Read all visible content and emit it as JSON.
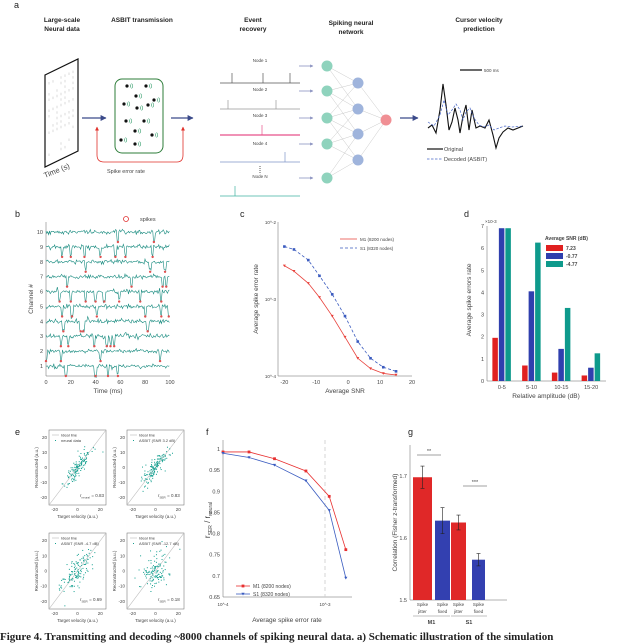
{
  "panel_labels": {
    "a": "a",
    "b": "b",
    "c": "c",
    "d": "d",
    "e": "e",
    "f": "f",
    "g": "g"
  },
  "panel_a": {
    "titles": {
      "data1": "Large-scale",
      "data2": "Neural data",
      "asbit": "ASBIT transmission",
      "event1": "Event",
      "event2": "recovery",
      "snn1": "Spiking neural",
      "snn2": "network",
      "cursor1": "Cursor velocity",
      "cursor2": "prediction"
    },
    "time_label": "Time (s)",
    "spike_error_label": "Spike error rate",
    "nodes": [
      "Node 1",
      "Node 2",
      "Node 3",
      "Node 4",
      "Node N"
    ],
    "node_colors": [
      "#555555",
      "#999999",
      "#e8508a",
      "#7f95c8",
      "#3fb3a0"
    ],
    "scale_bar": "500 ms",
    "legend_original": "Original",
    "legend_decoded": "Decoded (ASBIT)",
    "colors": {
      "input_node": "#8fd3bd",
      "hidden_node": "#9fb4dc",
      "output_node": "#f08f94",
      "box": "#2e7d3a",
      "feedback": "#e0302a",
      "arrow": "#3b4a8a"
    }
  },
  "chart_data": [
    {
      "panel": "b",
      "type": "line",
      "xlabel": "Time (ms)",
      "ylabel": "Channel #",
      "xlim": [
        0,
        100
      ],
      "xticks": [
        0,
        20,
        40,
        60,
        80,
        100
      ],
      "channels": [
        1,
        2,
        3,
        4,
        5,
        6,
        7,
        8,
        9,
        10
      ],
      "legend": "spikes",
      "trace_color": "#1a8c80",
      "spike_color": "#e05050",
      "spike_times_ms": {
        "1": [
          16,
          40,
          50,
          58
        ],
        "2": [
          0,
          12,
          44,
          92
        ],
        "3": [
          12,
          18,
          39,
          49,
          52,
          55
        ],
        "4": [
          14,
          28,
          30,
          82
        ],
        "5": [
          13,
          21,
          41,
          80,
          93,
          99
        ],
        "6": [
          11,
          20,
          32,
          40,
          47,
          59,
          76,
          93
        ],
        "7": [
          17,
          69,
          94,
          97
        ],
        "8": [
          32,
          84,
          96
        ],
        "9": [
          13,
          20,
          31,
          44,
          56,
          64,
          86
        ],
        "10": [
          58,
          87
        ]
      }
    },
    {
      "panel": "c",
      "type": "line",
      "xlabel": "Average SNR",
      "ylabel": "Average spike error rate",
      "xlim": [
        -22,
        20
      ],
      "xticks": [
        -20,
        -10,
        0,
        10,
        20
      ],
      "ylim": [
        0.0001,
        0.01
      ],
      "yscale": "log",
      "ytick_labels": [
        "10^-4",
        "10^-3",
        "10^-2"
      ],
      "legend_placement": "top-right",
      "series": [
        {
          "name": "M1 (8200 nodes)",
          "color": "#e8403a",
          "style": "solid",
          "marker": "triangle-down",
          "x": [
            -20,
            -17,
            -12.5,
            -9,
            -5,
            -1,
            3,
            7,
            11,
            15
          ],
          "y": [
            0.0027,
            0.0023,
            0.0016,
            0.00105,
            0.0006,
            0.00032,
            0.00017,
            0.000125,
            0.000108,
            0.000103
          ]
        },
        {
          "name": "S1 (8320 nodes)",
          "color": "#3b5bbf",
          "style": "dashed",
          "marker": "square",
          "x": [
            -20,
            -17,
            -12.5,
            -9,
            -5,
            -1,
            3,
            7,
            11,
            15
          ],
          "y": [
            0.0048,
            0.0044,
            0.0032,
            0.002,
            0.00115,
            0.0006,
            0.00028,
            0.00017,
            0.00013,
            0.000115
          ]
        }
      ]
    },
    {
      "panel": "d",
      "type": "bar",
      "xlabel": "Relative amplitude (dB)",
      "ylabel": "Average spike errors rate",
      "y_multiplier": "×10-3",
      "categories": [
        "0-5",
        "5-10",
        "10-15",
        "15-20"
      ],
      "ylim": [
        0,
        7
      ],
      "yticks": [
        0,
        1,
        2,
        3,
        4,
        5,
        6,
        7
      ],
      "legend_title": "Average SNR (dB)",
      "legend_placement": "top-right",
      "series": [
        {
          "name": "7.23",
          "color": "#e02020",
          "values": [
            1.95,
            0.7,
            0.38,
            0.25
          ]
        },
        {
          "name": "-0.77",
          "color": "#2f3fae",
          "values": [
            6.9,
            4.05,
            1.45,
            0.6
          ]
        },
        {
          "name": "-4.77",
          "color": "#0e9a8c",
          "values": [
            6.9,
            6.25,
            3.3,
            1.25
          ]
        }
      ]
    },
    {
      "panel": "e",
      "type": "scatter",
      "xlabel": "Target velocity (a.u.)",
      "ylabel": "Reconstructed (a.u.)",
      "xlim": [
        -25,
        25
      ],
      "ylim": [
        -25,
        25
      ],
      "xticks": [
        -20,
        0,
        20
      ],
      "yticks": [
        -20,
        -10,
        0,
        10,
        20
      ],
      "ideal_label": "Ideal line",
      "point_color": "#14a090",
      "subplots": [
        {
          "legend": "neural data",
          "r_label": "r",
          "r_sub": "neural",
          "r_value": "= 0.83",
          "r": 0.83
        },
        {
          "legend": "ASBIT (SNR 3.2 dB)",
          "r_label": "r",
          "r_sub": "SER",
          "r_value": "= 0.83",
          "r": 0.83
        },
        {
          "legend": "ASBIT (SNR -4.7 dB)",
          "r_label": "r",
          "r_sub": "SER",
          "r_value": "= 0.69",
          "r": 0.69
        },
        {
          "legend": "ASBIT (SNR -12.7 dB)",
          "r_label": "r",
          "r_sub": "SER",
          "r_value": "= 0.18",
          "r": 0.18
        }
      ]
    },
    {
      "panel": "f",
      "type": "line",
      "xlabel": "Average spike error rate",
      "ylabel_main": "r",
      "ylabel_sub1": "SER",
      "ylabel_mid": " / r",
      "ylabel_sub2": "neural",
      "xscale": "log",
      "xlim": [
        0.0001,
        0.0017
      ],
      "xtick_labels": [
        "10^-4",
        "10^-3"
      ],
      "ylim": [
        0.65,
        1.0
      ],
      "yticks": [
        0.65,
        0.7,
        0.75,
        0.8,
        0.85,
        0.9,
        0.95,
        1
      ],
      "vline": 0.001,
      "legend_placement": "bottom-left",
      "series": [
        {
          "name": "M1 (8200 nodes)",
          "color": "#e83030",
          "marker": "square",
          "x": [
            0.0001,
            0.00018,
            0.00032,
            0.00065,
            0.0011,
            0.0016
          ],
          "y": [
            0.993,
            0.993,
            0.977,
            0.948,
            0.888,
            0.762
          ]
        },
        {
          "name": "S1 (8320 nodes)",
          "color": "#3a5cc0",
          "marker": "triangle-down",
          "x": [
            0.0001,
            0.00018,
            0.00032,
            0.00065,
            0.0011,
            0.0016
          ],
          "y": [
            0.99,
            0.98,
            0.962,
            0.925,
            0.855,
            0.695
          ]
        }
      ]
    },
    {
      "panel": "g",
      "type": "bar",
      "ylabel": "Correlation (Fisher z-transformed)",
      "ylim": [
        1.5,
        1.75
      ],
      "yticks": [
        1.5,
        1.6,
        1.7
      ],
      "bars": [
        {
          "label1": "Spike",
          "label2": "jitter",
          "value": 1.698,
          "err": 0.018,
          "color": "#e02828"
        },
        {
          "label1": "Spike",
          "label2": "fixed",
          "value": 1.628,
          "err": 0.021,
          "color": "#3340b0"
        },
        {
          "label1": "Spike",
          "label2": "jitter",
          "value": 1.625,
          "err": 0.012,
          "color": "#e02828"
        },
        {
          "label1": "Spike",
          "label2": "fixed",
          "value": 1.565,
          "err": 0.01,
          "color": "#3340b0"
        }
      ],
      "groups": [
        "M1",
        "S1"
      ],
      "significance": [
        "**",
        "***"
      ]
    }
  ],
  "caption": "Figure 4. Transmitting and decoding ~8000 channels of spiking neural data. a) Schematic illustration of the simulation"
}
